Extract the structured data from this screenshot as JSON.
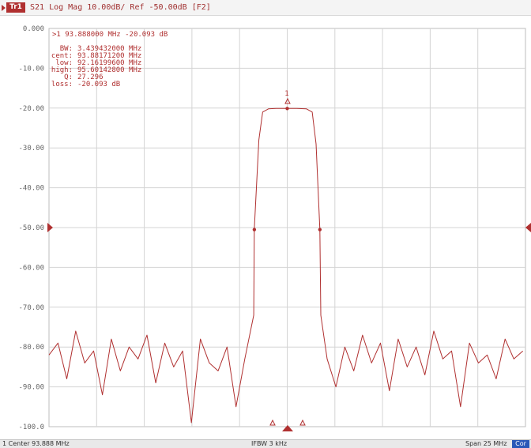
{
  "header": {
    "trace_badge": "Tr1",
    "title": "S21 Log Mag 10.00dB/ Ref -50.00dB [F2]"
  },
  "markers": {
    "active_line": ">1  93.888000 MHz -20.093 dB",
    "stats": [
      {
        "label": "BW:",
        "value": "3.439432000 MHz"
      },
      {
        "label": "cent:",
        "value": "93.88171200 MHz"
      },
      {
        "label": "low:",
        "value": "92.16199600 MHz"
      },
      {
        "label": "high:",
        "value": "95.60142800 MHz"
      },
      {
        "label": "Q:",
        "value": "27.296"
      },
      {
        "label": "loss:",
        "value": "-20.093 dB"
      }
    ],
    "marker_number": "1"
  },
  "status": {
    "left": "1  Center 93.888 MHz",
    "middle": "IFBW 3 kHz",
    "right": "Span 25 MHz",
    "correction_badge": "Cor"
  },
  "colors": {
    "trace": "#b03030",
    "grid": "#d4d4d4",
    "badge_blue": "#2a58b8"
  },
  "chart_data": {
    "type": "line",
    "ylim": [
      -100,
      0
    ],
    "yticks": [
      "0.000",
      "-10.00",
      "-20.00",
      "-30.00",
      "-40.00",
      "-50.00",
      "-60.00",
      "-70.00",
      "-80.00",
      "-90.00",
      "-100.0"
    ],
    "reference_level": -50,
    "center_mhz": 93.888,
    "span_mhz": 25,
    "x_mhz": [
      81.39,
      81.86,
      82.32,
      82.79,
      83.26,
      83.73,
      84.19,
      84.66,
      85.13,
      85.59,
      86.06,
      86.53,
      86.99,
      87.46,
      87.93,
      88.4,
      88.86,
      89.33,
      89.8,
      90.26,
      90.73,
      91.2,
      91.66,
      92.13,
      92.16,
      92.4,
      92.6,
      92.9,
      93.3,
      93.89,
      94.4,
      94.9,
      95.2,
      95.4,
      95.6,
      95.65,
      95.98,
      96.44,
      96.91,
      97.38,
      97.84,
      98.31,
      98.78,
      99.25,
      99.71,
      100.18,
      100.65,
      101.11,
      101.58,
      102.05,
      102.51,
      102.98,
      103.45,
      103.92,
      104.38,
      104.85,
      105.32,
      105.78,
      106.25
    ],
    "y_db": [
      -82,
      -79,
      -88,
      -76,
      -84,
      -81,
      -92,
      -78,
      -86,
      -80,
      -83,
      -77,
      -89,
      -79,
      -85,
      -81,
      -99,
      -78,
      -84,
      -86,
      -80,
      -95,
      -83,
      -72,
      -50.5,
      -28,
      -21,
      -20.2,
      -20.1,
      -20.09,
      -20.1,
      -20.2,
      -21,
      -29,
      -50.5,
      -72,
      -83,
      -90,
      -80,
      -86,
      -77,
      -84,
      -79,
      -91,
      -78,
      -85,
      -80,
      -87,
      -76,
      -83,
      -81,
      -95,
      -79,
      -84,
      -82,
      -88,
      -78,
      -83,
      -81
    ],
    "marker_db": [
      -20.093,
      -50.5,
      -50.5
    ]
  }
}
